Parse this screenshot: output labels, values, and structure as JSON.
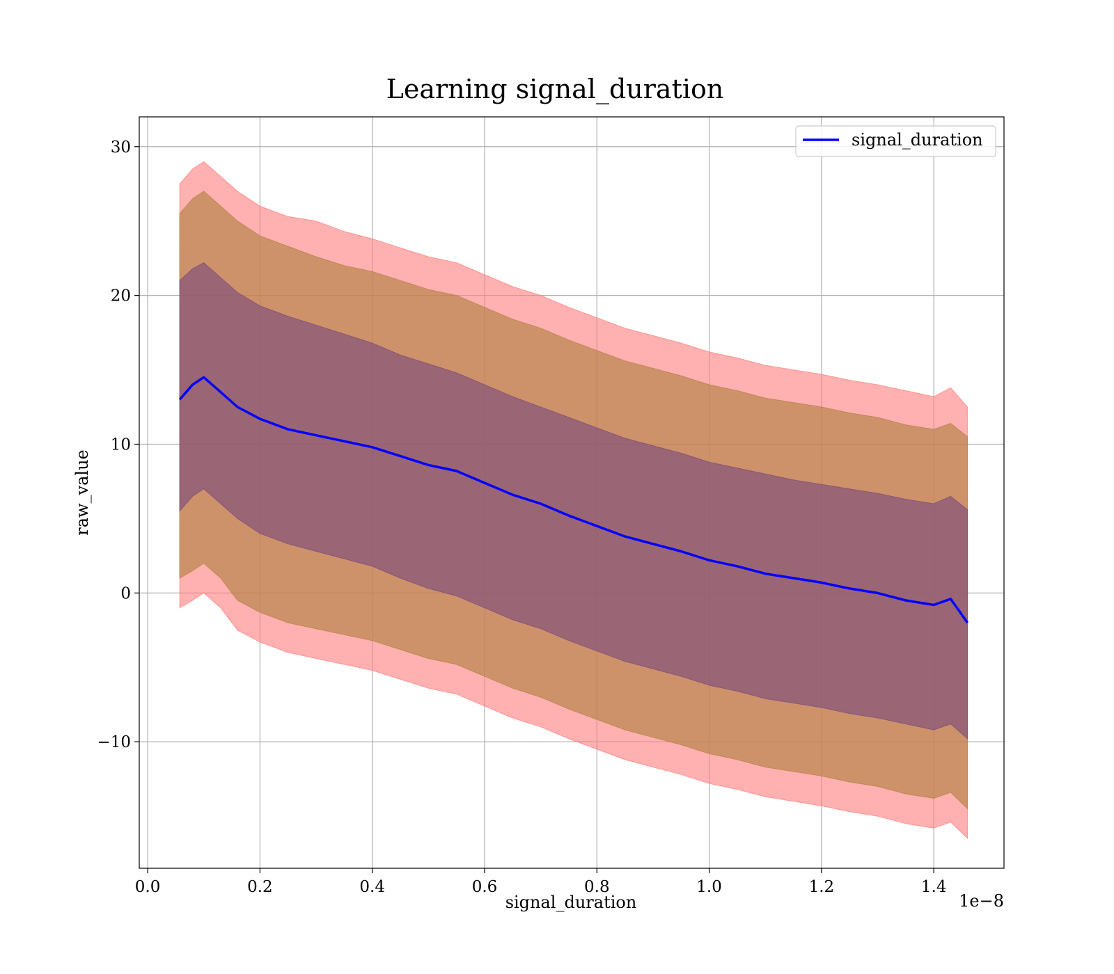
{
  "chart_data": {
    "type": "area",
    "title": "Learning signal_duration",
    "xlabel": "signal_duration",
    "ylabel": "raw_value",
    "x_offset_label": "1e−8",
    "xlim": [
      -0.015,
      1.525
    ],
    "ylim": [
      -18.5,
      32
    ],
    "x_ticks": [
      0.0,
      0.2,
      0.4,
      0.6,
      0.8,
      1.0,
      1.2,
      1.4
    ],
    "x_tick_labels": [
      "0.0",
      "0.2",
      "0.4",
      "0.6",
      "0.8",
      "1.0",
      "1.2",
      "1.4"
    ],
    "y_ticks": [
      -10,
      0,
      10,
      20,
      30
    ],
    "y_tick_labels": [
      "−10",
      "0",
      "10",
      "20",
      "30"
    ],
    "grid": true,
    "legend": {
      "position": "top-right",
      "entries": [
        "signal_duration"
      ]
    },
    "x": [
      0.057,
      0.08,
      0.1,
      0.13,
      0.16,
      0.2,
      0.25,
      0.3,
      0.35,
      0.4,
      0.45,
      0.5,
      0.55,
      0.6,
      0.65,
      0.7,
      0.75,
      0.8,
      0.85,
      0.9,
      0.95,
      1.0,
      1.05,
      1.1,
      1.15,
      1.2,
      1.25,
      1.3,
      1.35,
      1.4,
      1.43,
      1.46
    ],
    "series": [
      {
        "name": "signal_duration",
        "color": "#0000ff",
        "values": [
          13.0,
          14.0,
          14.5,
          13.5,
          12.5,
          11.7,
          11.0,
          10.6,
          10.2,
          9.8,
          9.2,
          8.6,
          8.2,
          7.4,
          6.6,
          6.0,
          5.2,
          4.5,
          3.8,
          3.3,
          2.8,
          2.2,
          1.8,
          1.3,
          1.0,
          0.7,
          0.3,
          0.0,
          -0.5,
          -0.8,
          -0.4,
          -2.0
        ]
      }
    ],
    "bands": [
      {
        "level": "outer",
        "color": "#ff7f7f",
        "lower": [
          -1.0,
          -0.5,
          0.0,
          -1.0,
          -2.5,
          -3.3,
          -4.0,
          -4.4,
          -4.8,
          -5.2,
          -5.8,
          -6.4,
          -6.8,
          -7.6,
          -8.4,
          -9.0,
          -9.8,
          -10.5,
          -11.2,
          -11.7,
          -12.2,
          -12.8,
          -13.2,
          -13.7,
          -14.0,
          -14.3,
          -14.7,
          -15.0,
          -15.5,
          -15.8,
          -15.4,
          -16.5
        ],
        "upper": [
          27.5,
          28.5,
          29.0,
          28.0,
          27.0,
          26.0,
          25.3,
          25.0,
          24.3,
          23.8,
          23.2,
          22.6,
          22.2,
          21.4,
          20.6,
          20.0,
          19.2,
          18.5,
          17.8,
          17.3,
          16.8,
          16.2,
          15.8,
          15.3,
          15.0,
          14.7,
          14.3,
          14.0,
          13.6,
          13.2,
          13.8,
          12.5
        ]
      },
      {
        "level": "middle",
        "color": "#b08040",
        "lower": [
          1.0,
          1.5,
          2.0,
          1.0,
          -0.5,
          -1.3,
          -2.0,
          -2.4,
          -2.8,
          -3.2,
          -3.8,
          -4.4,
          -4.8,
          -5.6,
          -6.4,
          -7.0,
          -7.8,
          -8.5,
          -9.2,
          -9.7,
          -10.2,
          -10.8,
          -11.2,
          -11.7,
          -12.0,
          -12.3,
          -12.7,
          -13.0,
          -13.5,
          -13.8,
          -13.4,
          -14.5
        ],
        "upper": [
          25.5,
          26.5,
          27.0,
          26.0,
          25.0,
          24.0,
          23.3,
          22.6,
          22.0,
          21.6,
          21.0,
          20.4,
          20.0,
          19.2,
          18.4,
          17.8,
          17.0,
          16.3,
          15.6,
          15.1,
          14.6,
          14.0,
          13.6,
          13.1,
          12.8,
          12.5,
          12.1,
          11.8,
          11.3,
          11.0,
          11.4,
          10.5
        ]
      },
      {
        "level": "inner",
        "color": "#7a4a7a",
        "lower": [
          5.5,
          6.5,
          7.0,
          6.0,
          5.0,
          4.0,
          3.3,
          2.8,
          2.3,
          1.8,
          1.0,
          0.3,
          -0.2,
          -1.0,
          -1.8,
          -2.4,
          -3.2,
          -3.9,
          -4.6,
          -5.1,
          -5.6,
          -6.2,
          -6.6,
          -7.1,
          -7.4,
          -7.7,
          -8.1,
          -8.4,
          -8.8,
          -9.2,
          -8.8,
          -9.8
        ],
        "upper": [
          21.0,
          21.8,
          22.2,
          21.2,
          20.2,
          19.3,
          18.6,
          18.0,
          17.4,
          16.8,
          16.0,
          15.4,
          14.8,
          14.0,
          13.2,
          12.5,
          11.8,
          11.1,
          10.4,
          9.9,
          9.4,
          8.8,
          8.4,
          8.0,
          7.6,
          7.3,
          7.0,
          6.7,
          6.3,
          6.0,
          6.5,
          5.6
        ]
      }
    ]
  }
}
